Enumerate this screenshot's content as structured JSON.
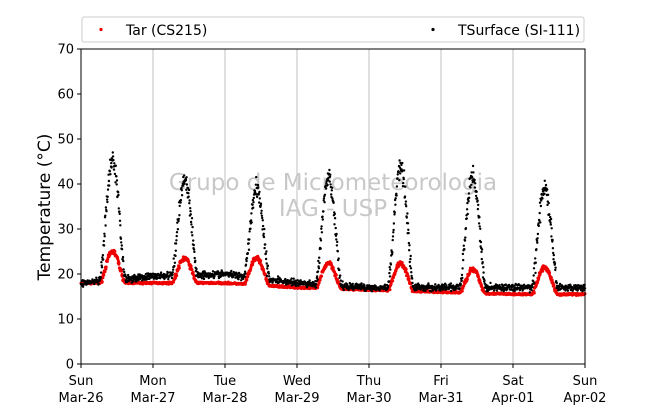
{
  "chart_data": {
    "type": "scatter",
    "title": "",
    "ylabel": "Temperature (°C)",
    "xlabel": "",
    "ylim": [
      0,
      70
    ],
    "yticks": [
      0,
      10,
      20,
      30,
      40,
      50,
      60,
      70
    ],
    "xlim_days": [
      0,
      7
    ],
    "xticks": [
      {
        "day": "Sun",
        "date": "Mar-26"
      },
      {
        "day": "Mon",
        "date": "Mar-27"
      },
      {
        "day": "Tue",
        "date": "Mar-28"
      },
      {
        "day": "Wed",
        "date": "Mar-29"
      },
      {
        "day": "Thu",
        "date": "Mar-30"
      },
      {
        "day": "Fri",
        "date": "Mar-31"
      },
      {
        "day": "Sat",
        "date": "Apr-01"
      },
      {
        "day": "Sun",
        "date": "Apr-02"
      }
    ],
    "grid": "vertical",
    "legend_position": "top",
    "watermark": [
      "Grupo de Micrometeorologia",
      "IAG - USP"
    ],
    "series": [
      {
        "name": "Tar (CS215)",
        "color": "#ee0000",
        "base": [
          18,
          18,
          18,
          17,
          16.5,
          16,
          15.5
        ],
        "peak": [
          25,
          23.5,
          23.5,
          22.5,
          22.5,
          21,
          21.5
        ]
      },
      {
        "name": "TSurface (SI-111)",
        "color": "#000000",
        "base": [
          18,
          19.5,
          20,
          18,
          17,
          17,
          17
        ],
        "peak": [
          45,
          41,
          39,
          41,
          44,
          42,
          39
        ]
      }
    ]
  }
}
